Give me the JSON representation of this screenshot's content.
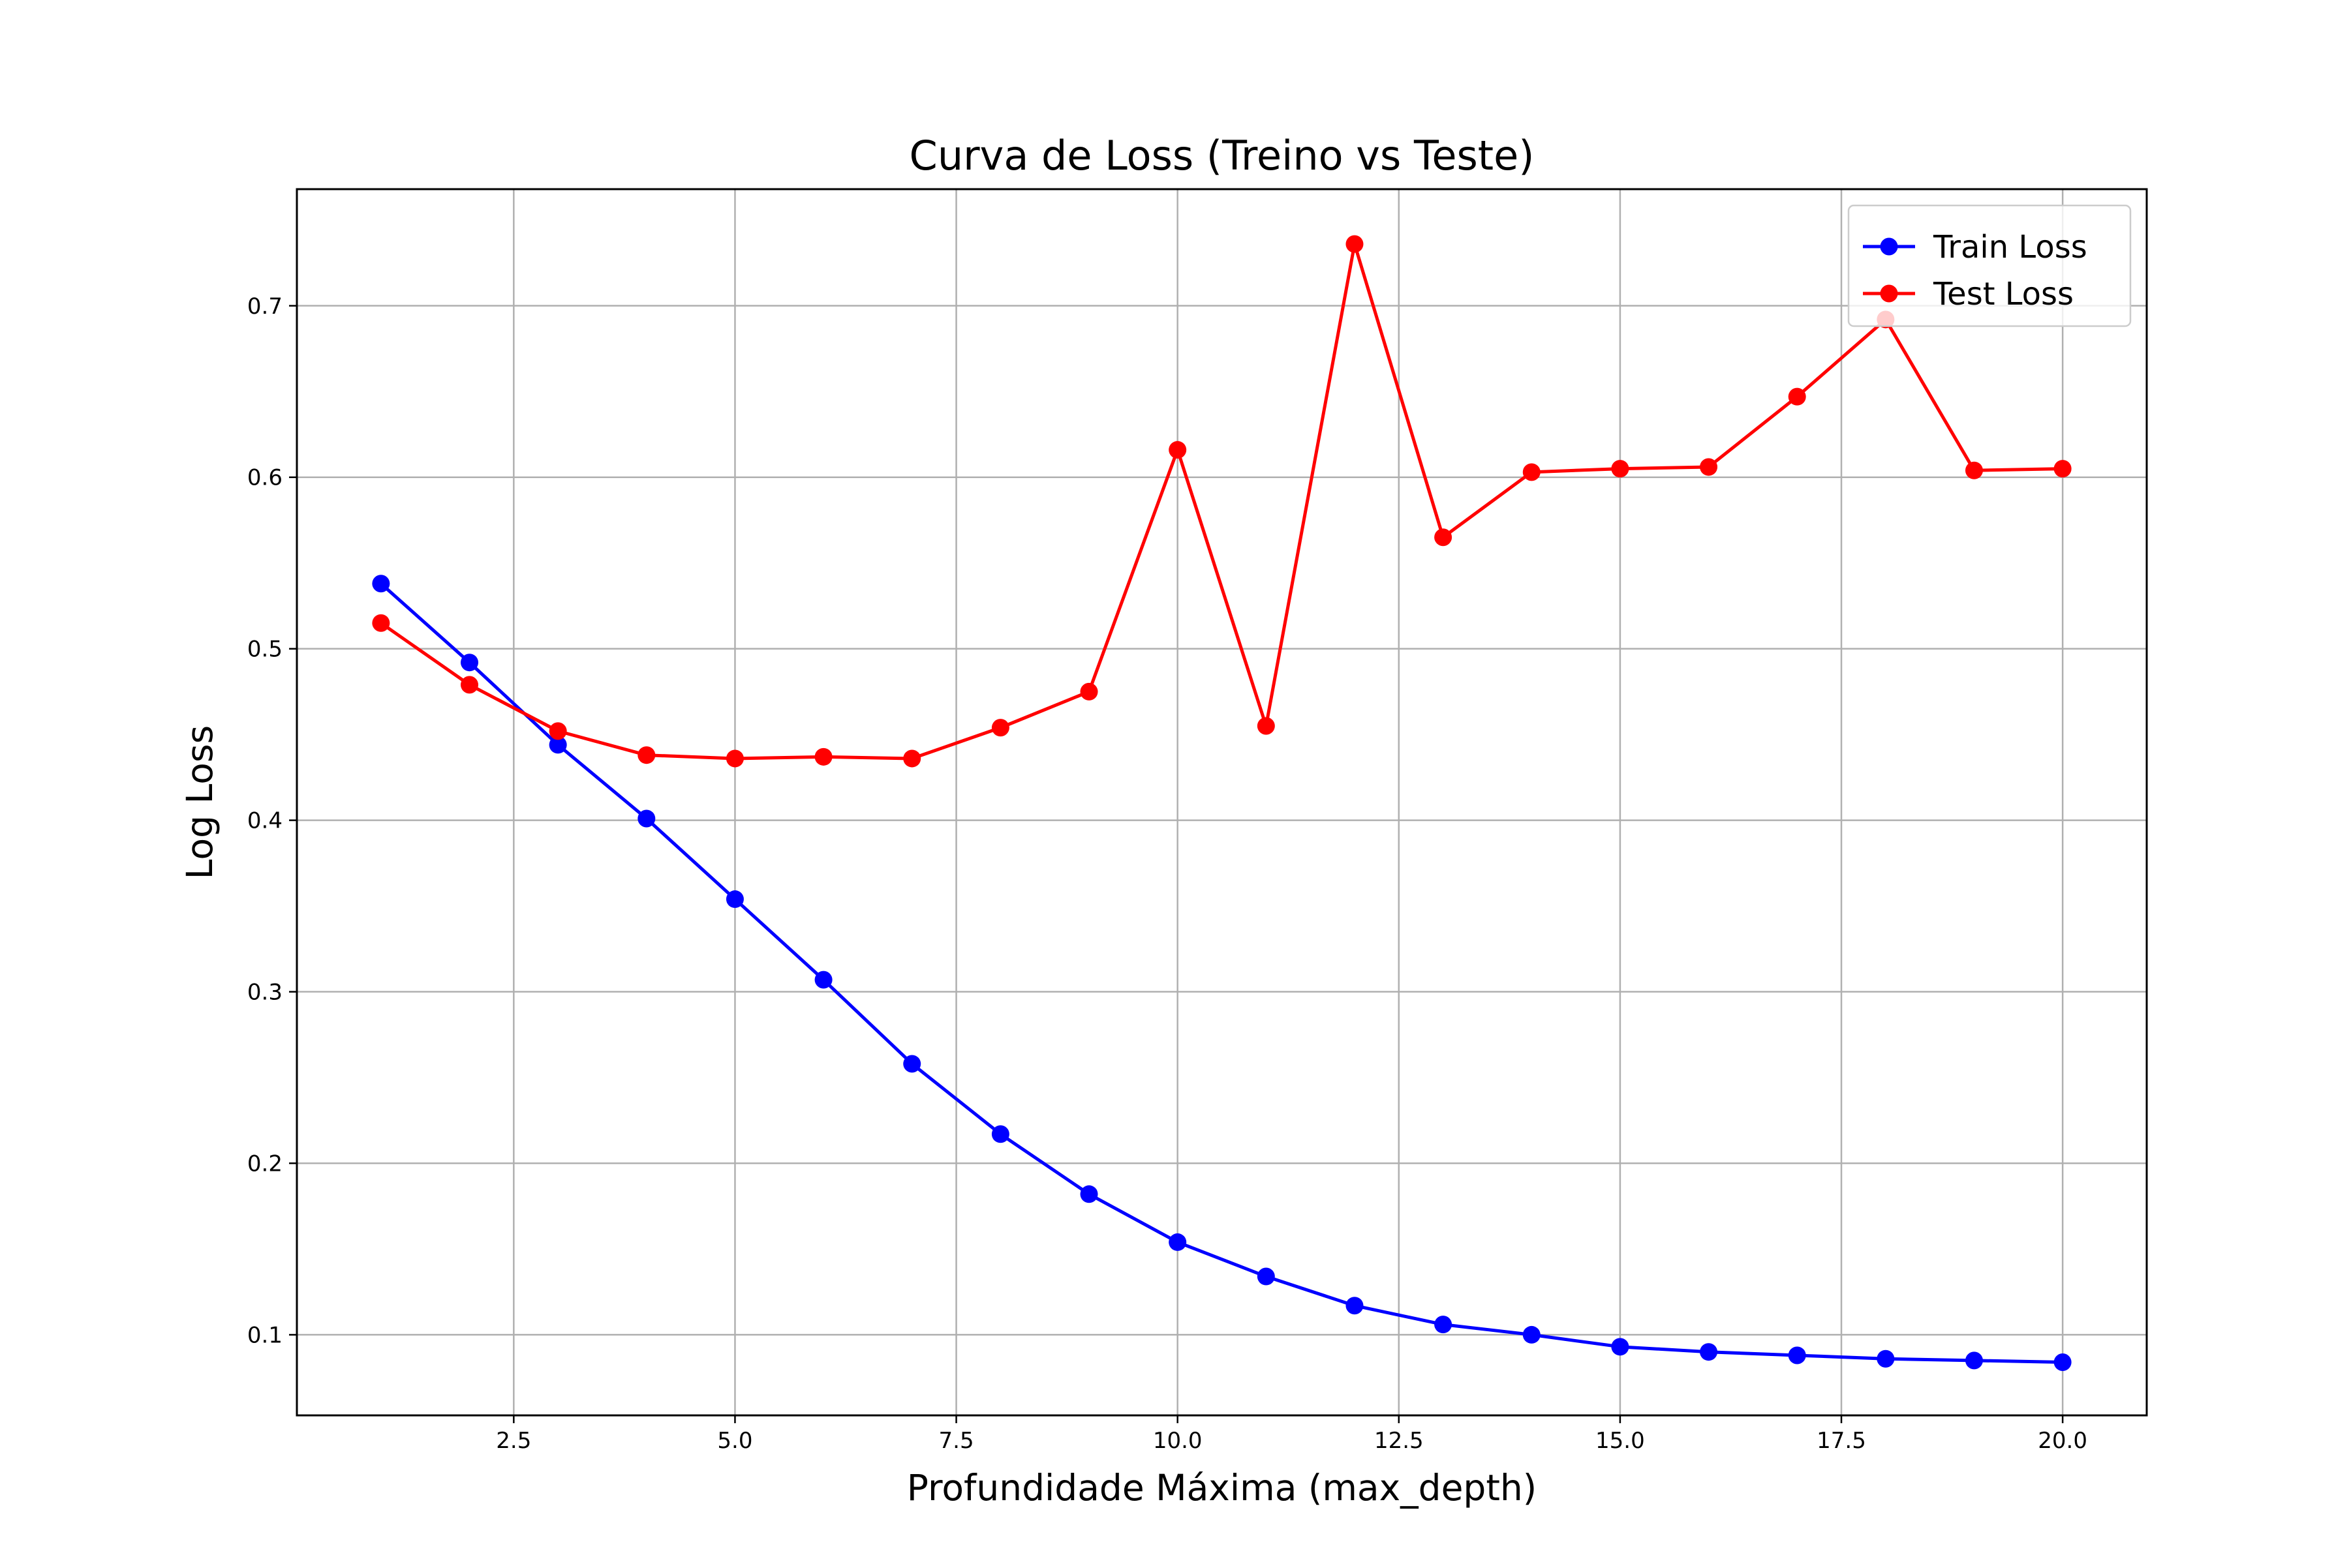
{
  "chart_data": {
    "type": "line",
    "title": "Curva de Loss (Treino vs Teste)",
    "xlabel": "Profundidade Máxima (max_depth)",
    "ylabel": "Log Loss",
    "xlim": [
      0.05,
      20.95
    ],
    "ylim": [
      0.053,
      0.768
    ],
    "xticks": [
      2.5,
      5.0,
      7.5,
      10.0,
      12.5,
      15.0,
      17.5,
      20.0
    ],
    "xtick_labels": [
      "2.5",
      "5.0",
      "7.5",
      "10.0",
      "12.5",
      "15.0",
      "17.5",
      "20.0"
    ],
    "yticks": [
      0.1,
      0.2,
      0.3,
      0.4,
      0.5,
      0.6,
      0.7
    ],
    "ytick_labels": [
      "0.1",
      "0.2",
      "0.3",
      "0.4",
      "0.5",
      "0.6",
      "0.7"
    ],
    "grid": true,
    "legend_position": "top-right",
    "x": [
      1,
      2,
      3,
      4,
      5,
      6,
      7,
      8,
      9,
      10,
      11,
      12,
      13,
      14,
      15,
      16,
      17,
      18,
      19,
      20
    ],
    "series": [
      {
        "name": "Train Loss",
        "color": "#0000ff",
        "marker": "circle",
        "values": [
          0.538,
          0.492,
          0.444,
          0.401,
          0.354,
          0.307,
          0.258,
          0.217,
          0.182,
          0.154,
          0.134,
          0.117,
          0.106,
          0.1,
          0.093,
          0.09,
          0.088,
          0.086,
          0.085,
          0.084
        ]
      },
      {
        "name": "Test Loss",
        "color": "#ff0000",
        "marker": "circle",
        "values": [
          0.515,
          0.479,
          0.452,
          0.438,
          0.436,
          0.437,
          0.436,
          0.454,
          0.475,
          0.616,
          0.455,
          0.736,
          0.565,
          0.603,
          0.605,
          0.606,
          0.647,
          0.692,
          0.604,
          0.605
        ]
      }
    ]
  }
}
